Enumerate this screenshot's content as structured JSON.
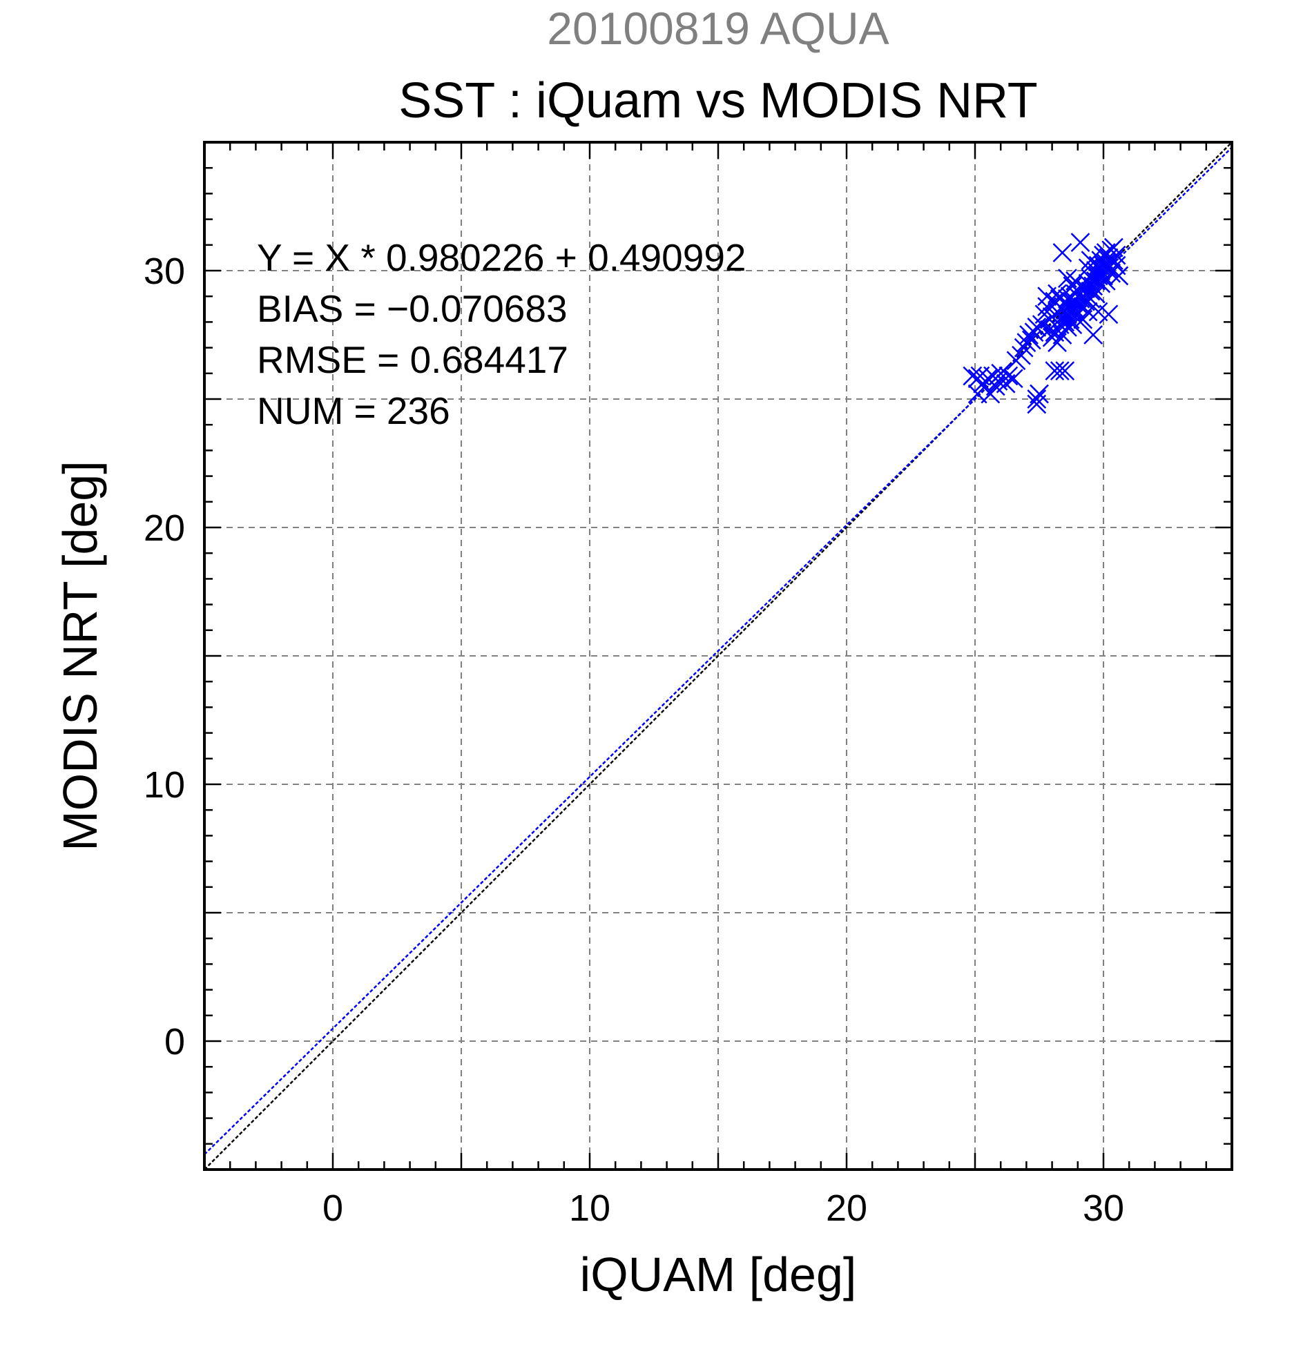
{
  "chart_data": {
    "type": "scatter",
    "supertitle": "20100819 AQUA",
    "title": "SST : iQuam vs MODIS NRT",
    "xlabel": "iQUAM [deg]",
    "ylabel": "MODIS NRT [deg]",
    "xlim": [
      -5,
      35
    ],
    "ylim": [
      -5,
      35
    ],
    "xticks": [
      0,
      10,
      20,
      30
    ],
    "yticks": [
      0,
      10,
      20,
      30
    ],
    "grid": true,
    "colors": {
      "points": "#0000ff",
      "fit_line": "#0000ff",
      "identity_line": "#000000",
      "supertitle": "#808080"
    },
    "annotations": [
      "Y = X * 0.980226 + 0.490992",
      "BIAS = −0.070683",
      "RMSE = 0.684417",
      "NUM = 236"
    ],
    "fit": {
      "slope": 0.980226,
      "intercept": 0.490992
    },
    "identity": {
      "slope": 1,
      "intercept": 0
    },
    "series": [
      {
        "marker": "x",
        "points": [
          [
            24.9,
            25.9
          ],
          [
            25.1,
            25.8
          ],
          [
            25.2,
            25.9
          ],
          [
            25.3,
            25.6
          ],
          [
            25.5,
            25.8
          ],
          [
            25.6,
            25.2
          ],
          [
            25.7,
            25.9
          ],
          [
            25.8,
            25.5
          ],
          [
            25.9,
            25.7
          ],
          [
            26.0,
            26.0
          ],
          [
            26.2,
            25.6
          ],
          [
            26.3,
            25.9
          ],
          [
            26.5,
            25.8
          ],
          [
            25.1,
            25.2
          ],
          [
            26.6,
            26.5
          ],
          [
            26.8,
            26.7
          ],
          [
            26.9,
            27.0
          ],
          [
            27.0,
            27.2
          ],
          [
            27.1,
            27.5
          ],
          [
            27.2,
            27.3
          ],
          [
            27.3,
            27.6
          ],
          [
            27.4,
            27.8
          ],
          [
            27.4,
            25.0
          ],
          [
            27.4,
            24.8
          ],
          [
            27.5,
            25.2
          ],
          [
            27.6,
            27.9
          ],
          [
            27.7,
            28.3
          ],
          [
            27.8,
            28.6
          ],
          [
            27.9,
            28.1
          ],
          [
            27.9,
            27.7
          ],
          [
            28.0,
            28.2
          ],
          [
            28.0,
            27.4
          ],
          [
            28.1,
            28.8
          ],
          [
            28.1,
            27.6
          ],
          [
            28.1,
            26.1
          ],
          [
            28.2,
            28.0
          ],
          [
            28.2,
            28.4
          ],
          [
            28.2,
            27.2
          ],
          [
            28.3,
            28.9
          ],
          [
            28.3,
            27.9
          ],
          [
            28.3,
            26.1
          ],
          [
            28.4,
            28.5
          ],
          [
            28.4,
            28.2
          ],
          [
            28.4,
            27.5
          ],
          [
            28.5,
            28.7
          ],
          [
            28.5,
            28.0
          ],
          [
            28.5,
            26.1
          ],
          [
            28.6,
            28.3
          ],
          [
            28.6,
            28.9
          ],
          [
            28.6,
            27.8
          ],
          [
            28.7,
            28.6
          ],
          [
            28.7,
            28.1
          ],
          [
            28.7,
            29.0
          ],
          [
            28.8,
            28.4
          ],
          [
            28.8,
            28.8
          ],
          [
            28.8,
            27.9
          ],
          [
            28.9,
            28.5
          ],
          [
            28.9,
            29.1
          ],
          [
            28.9,
            28.2
          ],
          [
            29.0,
            28.7
          ],
          [
            29.0,
            29.2
          ],
          [
            29.0,
            28.3
          ],
          [
            29.1,
            28.9
          ],
          [
            29.1,
            29.4
          ],
          [
            29.1,
            31.1
          ],
          [
            29.2,
            28.6
          ],
          [
            29.2,
            29.0
          ],
          [
            29.2,
            28.1
          ],
          [
            29.3,
            29.3
          ],
          [
            29.3,
            28.8
          ],
          [
            29.4,
            29.5
          ],
          [
            29.4,
            29.0
          ],
          [
            29.4,
            28.4
          ],
          [
            29.5,
            29.2
          ],
          [
            29.5,
            29.7
          ],
          [
            29.5,
            28.9
          ],
          [
            29.6,
            29.4
          ],
          [
            29.6,
            29.9
          ],
          [
            29.6,
            27.5
          ],
          [
            29.7,
            29.6
          ],
          [
            29.7,
            30.0
          ],
          [
            29.7,
            29.1
          ],
          [
            29.8,
            29.8
          ],
          [
            29.8,
            30.2
          ],
          [
            29.8,
            28.4
          ],
          [
            29.9,
            30.0
          ],
          [
            29.9,
            29.5
          ],
          [
            29.9,
            30.4
          ],
          [
            30.0,
            30.2
          ],
          [
            30.0,
            29.8
          ],
          [
            30.0,
            30.6
          ],
          [
            30.1,
            30.3
          ],
          [
            30.1,
            29.6
          ],
          [
            30.1,
            30.7
          ],
          [
            30.2,
            30.1
          ],
          [
            30.2,
            30.5
          ],
          [
            30.3,
            30.8
          ],
          [
            30.3,
            29.9
          ],
          [
            30.4,
            30.4
          ],
          [
            30.5,
            30.6
          ],
          [
            30.6,
            29.8
          ],
          [
            30.2,
            28.3
          ],
          [
            29.4,
            30.1
          ],
          [
            28.6,
            29.7
          ],
          [
            28.4,
            30.7
          ],
          [
            28.8,
            29.4
          ],
          [
            27.8,
            29.0
          ],
          [
            28.9,
            29.6
          ],
          [
            28.2,
            29.1
          ],
          [
            29.5,
            30.4
          ],
          [
            30.4,
            30.9
          ],
          [
            30.5,
            30.2
          ]
        ]
      }
    ]
  }
}
